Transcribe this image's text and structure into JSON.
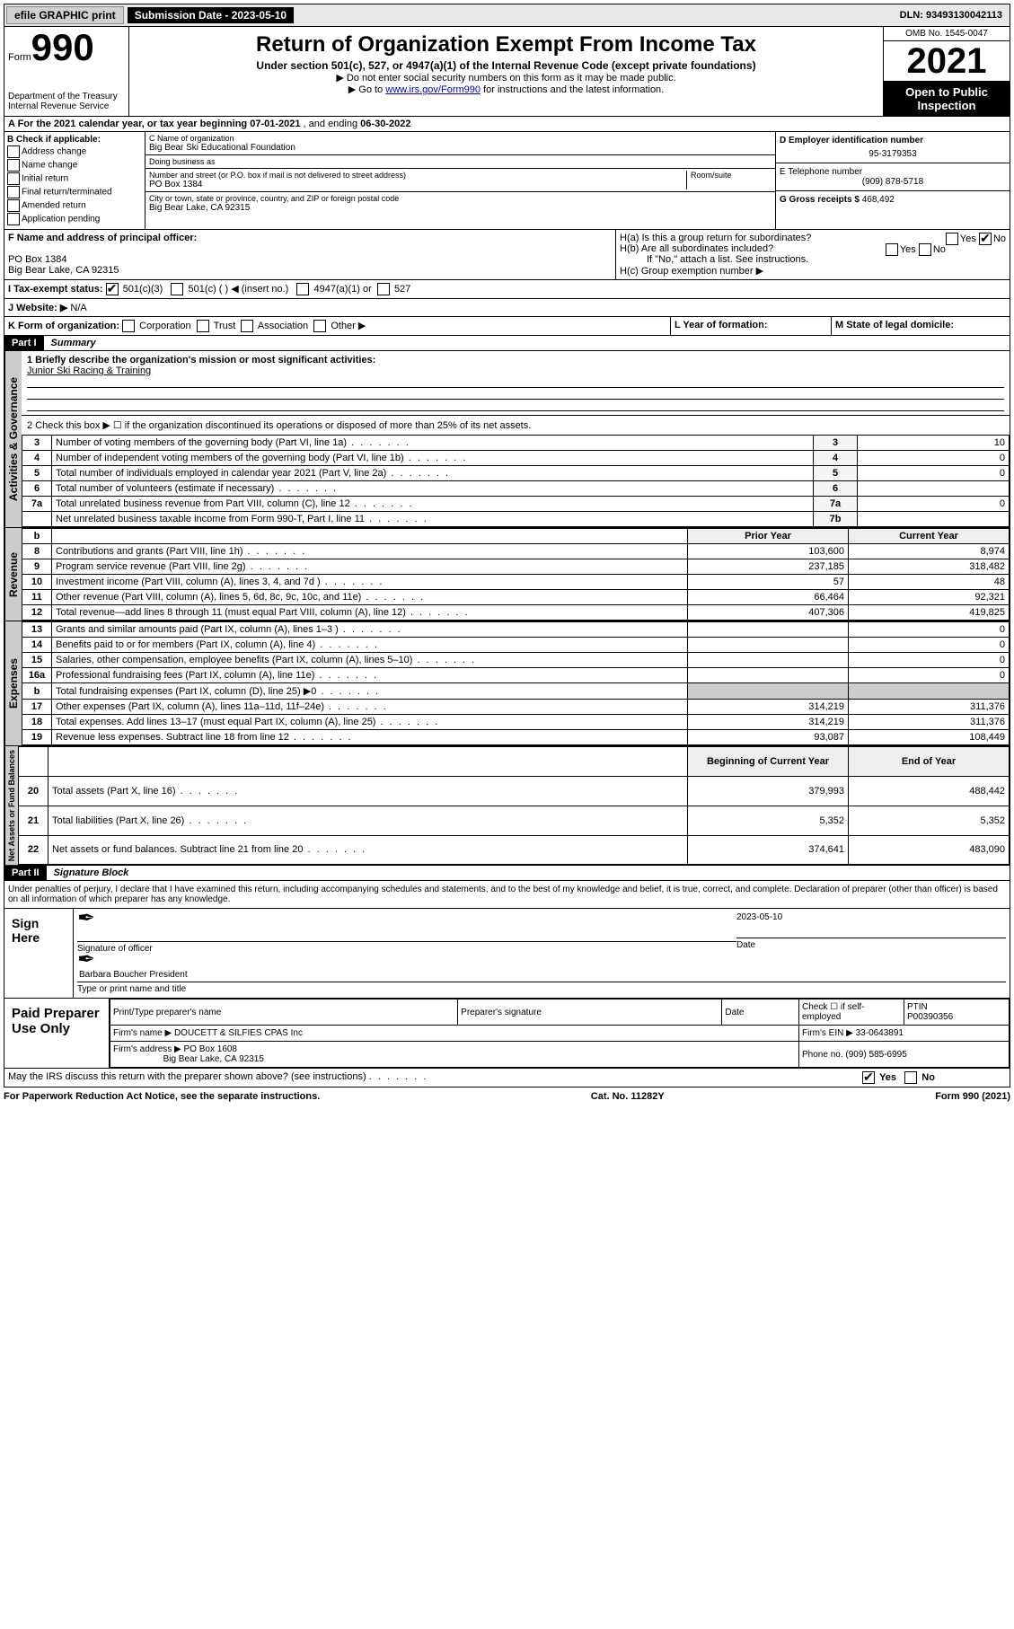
{
  "topbar": {
    "efile": "efile GRAPHIC print",
    "submission_label": "Submission Date - 2023-05-10",
    "dln": "DLN: 93493130042113"
  },
  "header": {
    "form_word": "Form",
    "form_num": "990",
    "dept": "Department of the Treasury",
    "irs": "Internal Revenue Service",
    "title": "Return of Organization Exempt From Income Tax",
    "sub1": "Under section 501(c), 527, or 4947(a)(1) of the Internal Revenue Code (except private foundations)",
    "sub2": "▶ Do not enter social security numbers on this form as it may be made public.",
    "sub3_pre": "▶ Go to ",
    "sub3_link": "www.irs.gov/Form990",
    "sub3_post": " for instructions and the latest information.",
    "omb": "OMB No. 1545-0047",
    "year": "2021",
    "open": "Open to Public Inspection"
  },
  "row_a": {
    "text_pre": "A For the 2021 calendar year, or tax year beginning ",
    "begin": "07-01-2021",
    "mid": " , and ending ",
    "end": "06-30-2022"
  },
  "box_b": {
    "title": "B Check if applicable:",
    "opts": [
      "Address change",
      "Name change",
      "Initial return",
      "Final return/terminated",
      "Amended return",
      "Application pending"
    ]
  },
  "box_c": {
    "name_lbl": "C Name of organization",
    "name": "Big Bear Ski Educational Foundation",
    "dba_lbl": "Doing business as",
    "dba": "",
    "street_lbl": "Number and street (or P.O. box if mail is not delivered to street address)",
    "room_lbl": "Room/suite",
    "street": "PO Box 1384",
    "city_lbl": "City or town, state or province, country, and ZIP or foreign postal code",
    "city": "Big Bear Lake, CA  92315"
  },
  "box_d": {
    "lbl": "D Employer identification number",
    "val": "95-3179353",
    "e_lbl": "E Telephone number",
    "e_val": "(909) 878-5718",
    "g_lbl": "G Gross receipts $ ",
    "g_val": "468,492"
  },
  "box_f": {
    "lbl": "F Name and address of principal officer:",
    "line1": "PO Box 1384",
    "line2": "Big Bear Lake, CA  92315"
  },
  "box_h": {
    "ha": "H(a)  Is this a group return for subordinates?",
    "hb": "H(b)  Are all subordinates included?",
    "hb_note": "If \"No,\" attach a list. See instructions.",
    "hc": "H(c)  Group exemption number ▶"
  },
  "row_i": {
    "lbl": "I   Tax-exempt status:",
    "o1": "501(c)(3)",
    "o2": "501(c) (  ) ◀ (insert no.)",
    "o3": "4947(a)(1) or",
    "o4": "527"
  },
  "row_j": {
    "lbl": "J   Website: ▶",
    "val": "N/A"
  },
  "row_k": {
    "lbl": "K Form of organization:",
    "opts": [
      "Corporation",
      "Trust",
      "Association",
      "Other ▶"
    ],
    "l_lbl": "L Year of formation:",
    "m_lbl": "M State of legal domicile:"
  },
  "part1": {
    "num": "Part I",
    "title": "Summary"
  },
  "summary": {
    "q1_lbl": "1  Briefly describe the organization's mission or most significant activities:",
    "q1_val": "Junior Ski Racing & Training",
    "q2": "2  Check this box ▶ ☐  if the organization discontinued its operations or disposed of more than 25% of its net assets."
  },
  "gov_rows": [
    {
      "n": "3",
      "t": "Number of voting members of the governing body (Part VI, line 1a)",
      "k": "3",
      "v": "10"
    },
    {
      "n": "4",
      "t": "Number of independent voting members of the governing body (Part VI, line 1b)",
      "k": "4",
      "v": "0"
    },
    {
      "n": "5",
      "t": "Total number of individuals employed in calendar year 2021 (Part V, line 2a)",
      "k": "5",
      "v": "0"
    },
    {
      "n": "6",
      "t": "Total number of volunteers (estimate if necessary)",
      "k": "6",
      "v": ""
    },
    {
      "n": "7a",
      "t": "Total unrelated business revenue from Part VIII, column (C), line 12",
      "k": "7a",
      "v": "0"
    },
    {
      "n": "",
      "t": "Net unrelated business taxable income from Form 990-T, Part I, line 11",
      "k": "7b",
      "v": ""
    }
  ],
  "rev_hdr": {
    "b": "b",
    "py": "Prior Year",
    "cy": "Current Year"
  },
  "rev_rows": [
    {
      "n": "8",
      "t": "Contributions and grants (Part VIII, line 1h)",
      "py": "103,600",
      "cy": "8,974"
    },
    {
      "n": "9",
      "t": "Program service revenue (Part VIII, line 2g)",
      "py": "237,185",
      "cy": "318,482"
    },
    {
      "n": "10",
      "t": "Investment income (Part VIII, column (A), lines 3, 4, and 7d )",
      "py": "57",
      "cy": "48"
    },
    {
      "n": "11",
      "t": "Other revenue (Part VIII, column (A), lines 5, 6d, 8c, 9c, 10c, and 11e)",
      "py": "66,464",
      "cy": "92,321"
    },
    {
      "n": "12",
      "t": "Total revenue—add lines 8 through 11 (must equal Part VIII, column (A), line 12)",
      "py": "407,306",
      "cy": "419,825"
    }
  ],
  "exp_rows": [
    {
      "n": "13",
      "t": "Grants and similar amounts paid (Part IX, column (A), lines 1–3 )",
      "py": "",
      "cy": "0"
    },
    {
      "n": "14",
      "t": "Benefits paid to or for members (Part IX, column (A), line 4)",
      "py": "",
      "cy": "0"
    },
    {
      "n": "15",
      "t": "Salaries, other compensation, employee benefits (Part IX, column (A), lines 5–10)",
      "py": "",
      "cy": "0"
    },
    {
      "n": "16a",
      "t": "Professional fundraising fees (Part IX, column (A), line 11e)",
      "py": "",
      "cy": "0"
    },
    {
      "n": "b",
      "t": "Total fundraising expenses (Part IX, column (D), line 25) ▶0",
      "py": "SHADE",
      "cy": "SHADE"
    },
    {
      "n": "17",
      "t": "Other expenses (Part IX, column (A), lines 11a–11d, 11f–24e)",
      "py": "314,219",
      "cy": "311,376"
    },
    {
      "n": "18",
      "t": "Total expenses. Add lines 13–17 (must equal Part IX, column (A), line 25)",
      "py": "314,219",
      "cy": "311,376"
    },
    {
      "n": "19",
      "t": "Revenue less expenses. Subtract line 18 from line 12",
      "py": "93,087",
      "cy": "108,449"
    }
  ],
  "na_hdr": {
    "py": "Beginning of Current Year",
    "cy": "End of Year"
  },
  "na_rows": [
    {
      "n": "20",
      "t": "Total assets (Part X, line 16)",
      "py": "379,993",
      "cy": "488,442"
    },
    {
      "n": "21",
      "t": "Total liabilities (Part X, line 26)",
      "py": "5,352",
      "cy": "5,352"
    },
    {
      "n": "22",
      "t": "Net assets or fund balances. Subtract line 21 from line 20",
      "py": "374,641",
      "cy": "483,090"
    }
  ],
  "part2": {
    "num": "Part II",
    "title": "Signature Block"
  },
  "sig_decl": "Under penalties of perjury, I declare that I have examined this return, including accompanying schedules and statements, and to the best of my knowledge and belief, it is true, correct, and complete. Declaration of preparer (other than officer) is based on all information of which preparer has any knowledge.",
  "sign": {
    "here": "Sign Here",
    "sig_lbl": "Signature of officer",
    "date_lbl": "Date",
    "date_val": "2023-05-10",
    "name": "Barbara Boucher President",
    "name_lbl": "Type or print name and title"
  },
  "prep": {
    "lbl": "Paid Preparer Use Only",
    "h1": "Print/Type preparer's name",
    "h2": "Preparer's signature",
    "h3": "Date",
    "h4_a": "Check ☐ if self-employed",
    "h4_b": "PTIN",
    "ptin": "P00390356",
    "firm_lbl": "Firm's name    ▶",
    "firm": "DOUCETT & SILFIES CPAS Inc",
    "ein_lbl": "Firm's EIN ▶",
    "ein": "33-0643891",
    "addr_lbl": "Firm's address ▶",
    "addr1": "PO Box 1608",
    "addr2": "Big Bear Lake, CA  92315",
    "phone_lbl": "Phone no.",
    "phone": "(909) 585-6995"
  },
  "discuss": {
    "q": "May the IRS discuss this return with the preparer shown above? (see instructions)",
    "yes": "Yes",
    "no": "No"
  },
  "footer": {
    "l": "For Paperwork Reduction Act Notice, see the separate instructions.",
    "c": "Cat. No. 11282Y",
    "r": "Form 990 (2021)"
  },
  "sides": {
    "gov": "Activities & Governance",
    "rev": "Revenue",
    "exp": "Expenses",
    "na": "Net Assets or Fund Balances"
  }
}
